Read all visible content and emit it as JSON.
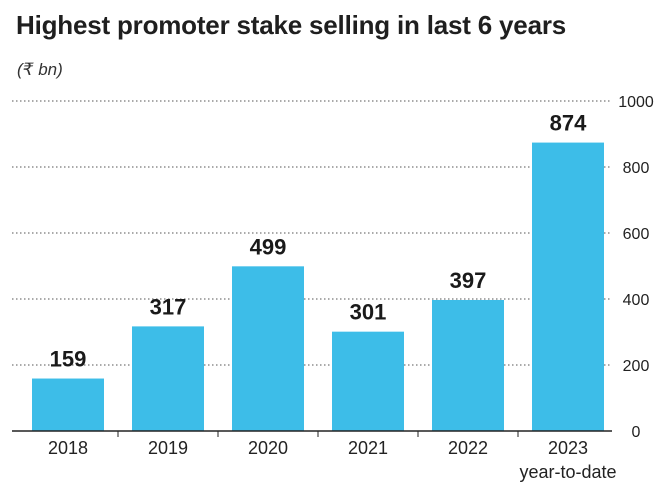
{
  "chart_data": {
    "type": "bar",
    "title": "Highest promoter stake selling in last 6 years",
    "subtitle": "(₹ bn)",
    "categories": [
      "2018",
      "2019",
      "2020",
      "2021",
      "2022",
      "2023"
    ],
    "category_sublabels": [
      "",
      "",
      "",
      "",
      "",
      "year-to-date"
    ],
    "values": [
      159,
      317,
      499,
      301,
      397,
      874
    ],
    "data_labels": [
      "159",
      "317",
      "499",
      "301",
      "397",
      "874"
    ],
    "ylim": [
      0,
      1000
    ],
    "yticks": [
      0,
      200,
      400,
      600,
      800,
      1000
    ],
    "y_axis_side": "right",
    "grid": true,
    "bar_color": "#3dbde8",
    "grid_color": "#555555"
  }
}
